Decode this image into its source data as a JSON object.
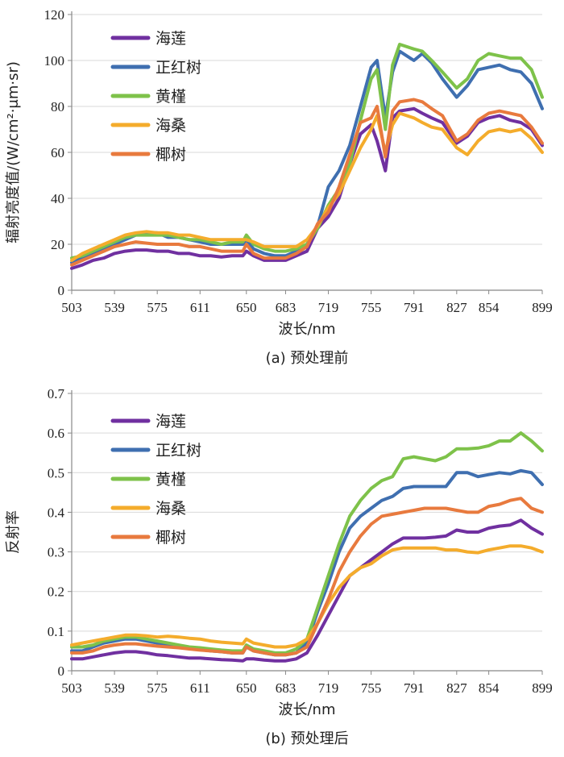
{
  "chart_data": [
    {
      "type": "line",
      "caption": "(a) 预处理前",
      "xlabel": "波长/nm",
      "ylabel": "辐射亮度值/(W/cm²·μm·sr)",
      "ylim": [
        0,
        120
      ],
      "yticks": [
        0,
        20,
        40,
        60,
        80,
        100,
        120
      ],
      "xticks": [
        503,
        539,
        575,
        611,
        650,
        683,
        719,
        755,
        791,
        827,
        854,
        899
      ],
      "grid": "horizontal",
      "legend_position": "top-left",
      "x": [
        503,
        512,
        521,
        530,
        539,
        548,
        557,
        566,
        575,
        584,
        593,
        602,
        611,
        620,
        629,
        638,
        647,
        650,
        656,
        665,
        674,
        683,
        692,
        701,
        710,
        719,
        728,
        737,
        746,
        755,
        760,
        767,
        773,
        779,
        791,
        798,
        806,
        815,
        827,
        836,
        845,
        854,
        863,
        872,
        881,
        890,
        899
      ],
      "series": [
        {
          "name": "海莲",
          "color": "#7030a0",
          "values": [
            9.5,
            11,
            13,
            14,
            16,
            17,
            17.5,
            17.5,
            17,
            17,
            16,
            16,
            15,
            15,
            14.5,
            15,
            15,
            17,
            15,
            13,
            13,
            13,
            15,
            17,
            27,
            32,
            40,
            55,
            68,
            72,
            65,
            52,
            75,
            78,
            79,
            77,
            75,
            73,
            64,
            67,
            73,
            75,
            76,
            74,
            73,
            70,
            63
          ]
        },
        {
          "name": "正红树",
          "color": "#3f6fb0",
          "values": [
            12,
            14,
            16,
            18,
            20,
            22,
            24,
            25,
            25,
            23,
            23,
            22,
            21,
            20,
            20,
            20,
            20,
            22,
            18,
            16,
            15,
            15,
            17,
            20,
            28,
            45,
            52,
            63,
            80,
            97,
            100,
            75,
            95,
            104,
            100,
            103,
            99,
            92,
            84,
            89,
            96,
            97,
            98,
            96,
            95,
            90,
            79
          ]
        },
        {
          "name": "黄槿",
          "color": "#7ec24a",
          "values": [
            14,
            15,
            17,
            19,
            21,
            23,
            24,
            24,
            24,
            24,
            23,
            22,
            22,
            21,
            20,
            21,
            21,
            24,
            20,
            18,
            17,
            17,
            18,
            20,
            27,
            37,
            44,
            55,
            74,
            92,
            96,
            70,
            98,
            107,
            105,
            104,
            100,
            95,
            88,
            92,
            100,
            103,
            102,
            101,
            101,
            96,
            84
          ]
        },
        {
          "name": "海桑",
          "color": "#f4ac2c",
          "values": [
            13,
            16,
            18,
            20,
            22,
            24,
            25,
            25.5,
            25,
            25,
            24,
            24,
            23,
            22,
            22,
            22,
            22,
            22,
            21,
            19,
            19,
            19,
            19,
            22,
            28,
            36,
            42,
            52,
            62,
            70,
            76,
            60,
            72,
            77,
            75,
            73,
            71,
            70,
            62,
            59,
            65,
            69,
            70,
            69,
            70,
            66,
            60
          ]
        },
        {
          "name": "椰树",
          "color": "#e87a3e",
          "values": [
            11,
            13,
            15,
            17,
            19,
            20,
            21,
            20.5,
            20,
            20,
            20,
            19,
            19,
            18,
            17,
            17,
            17,
            20,
            16,
            14,
            14,
            14,
            16,
            19,
            29,
            34,
            45,
            59,
            73,
            75,
            80,
            58,
            78,
            82,
            83,
            82,
            79,
            76,
            65,
            68,
            74,
            77,
            78,
            77,
            76,
            71,
            64
          ]
        }
      ]
    },
    {
      "type": "line",
      "caption": "(b) 预处理后",
      "xlabel": "波长/nm",
      "ylabel": "反射率",
      "ylim": [
        0,
        0.7
      ],
      "yticks": [
        0,
        0.1,
        0.2,
        0.3,
        0.4,
        0.5,
        0.6,
        0.7
      ],
      "xticks": [
        503,
        539,
        575,
        611,
        650,
        683,
        719,
        755,
        791,
        827,
        854,
        899
      ],
      "grid": "horizontal",
      "legend_position": "top-left",
      "x": [
        503,
        512,
        521,
        530,
        539,
        548,
        557,
        566,
        575,
        584,
        593,
        602,
        611,
        620,
        629,
        638,
        647,
        650,
        656,
        665,
        674,
        683,
        692,
        701,
        710,
        719,
        728,
        737,
        746,
        755,
        764,
        773,
        782,
        791,
        800,
        809,
        818,
        827,
        836,
        845,
        854,
        863,
        872,
        881,
        890,
        899
      ],
      "series": [
        {
          "name": "海莲",
          "color": "#7030a0",
          "values": [
            0.03,
            0.03,
            0.035,
            0.04,
            0.045,
            0.048,
            0.048,
            0.045,
            0.04,
            0.038,
            0.035,
            0.032,
            0.032,
            0.03,
            0.028,
            0.027,
            0.025,
            0.03,
            0.03,
            0.027,
            0.025,
            0.025,
            0.03,
            0.045,
            0.09,
            0.14,
            0.19,
            0.24,
            0.26,
            0.28,
            0.3,
            0.32,
            0.335,
            0.335,
            0.335,
            0.337,
            0.34,
            0.355,
            0.35,
            0.35,
            0.36,
            0.365,
            0.368,
            0.38,
            0.36,
            0.345
          ]
        },
        {
          "name": "正红树",
          "color": "#3f6fb0",
          "values": [
            0.05,
            0.05,
            0.06,
            0.07,
            0.075,
            0.08,
            0.08,
            0.075,
            0.07,
            0.065,
            0.06,
            0.058,
            0.055,
            0.05,
            0.048,
            0.045,
            0.045,
            0.06,
            0.05,
            0.045,
            0.04,
            0.04,
            0.045,
            0.07,
            0.15,
            0.22,
            0.3,
            0.36,
            0.39,
            0.41,
            0.43,
            0.44,
            0.46,
            0.465,
            0.465,
            0.465,
            0.465,
            0.5,
            0.5,
            0.49,
            0.495,
            0.5,
            0.497,
            0.505,
            0.5,
            0.47
          ]
        },
        {
          "name": "黄槿",
          "color": "#7ec24a",
          "values": [
            0.06,
            0.06,
            0.065,
            0.075,
            0.08,
            0.085,
            0.085,
            0.08,
            0.075,
            0.07,
            0.065,
            0.06,
            0.058,
            0.055,
            0.052,
            0.05,
            0.05,
            0.065,
            0.055,
            0.05,
            0.045,
            0.045,
            0.055,
            0.08,
            0.16,
            0.24,
            0.32,
            0.39,
            0.43,
            0.46,
            0.48,
            0.49,
            0.535,
            0.54,
            0.535,
            0.53,
            0.54,
            0.56,
            0.56,
            0.562,
            0.568,
            0.58,
            0.58,
            0.6,
            0.58,
            0.555
          ]
        },
        {
          "name": "海桑",
          "color": "#f4ac2c",
          "values": [
            0.065,
            0.07,
            0.075,
            0.08,
            0.085,
            0.09,
            0.09,
            0.088,
            0.085,
            0.087,
            0.085,
            0.082,
            0.08,
            0.075,
            0.072,
            0.07,
            0.068,
            0.08,
            0.07,
            0.065,
            0.06,
            0.06,
            0.065,
            0.08,
            0.12,
            0.17,
            0.21,
            0.24,
            0.26,
            0.27,
            0.29,
            0.305,
            0.31,
            0.31,
            0.31,
            0.31,
            0.305,
            0.305,
            0.3,
            0.298,
            0.305,
            0.31,
            0.315,
            0.315,
            0.31,
            0.3
          ]
        },
        {
          "name": "椰树",
          "color": "#e87a3e",
          "values": [
            0.045,
            0.045,
            0.05,
            0.06,
            0.065,
            0.068,
            0.068,
            0.065,
            0.062,
            0.06,
            0.058,
            0.055,
            0.052,
            0.05,
            0.048,
            0.045,
            0.045,
            0.06,
            0.05,
            0.045,
            0.04,
            0.04,
            0.045,
            0.06,
            0.12,
            0.18,
            0.25,
            0.3,
            0.34,
            0.37,
            0.39,
            0.395,
            0.4,
            0.405,
            0.41,
            0.41,
            0.41,
            0.405,
            0.4,
            0.4,
            0.415,
            0.42,
            0.43,
            0.435,
            0.41,
            0.4
          ]
        }
      ]
    }
  ]
}
